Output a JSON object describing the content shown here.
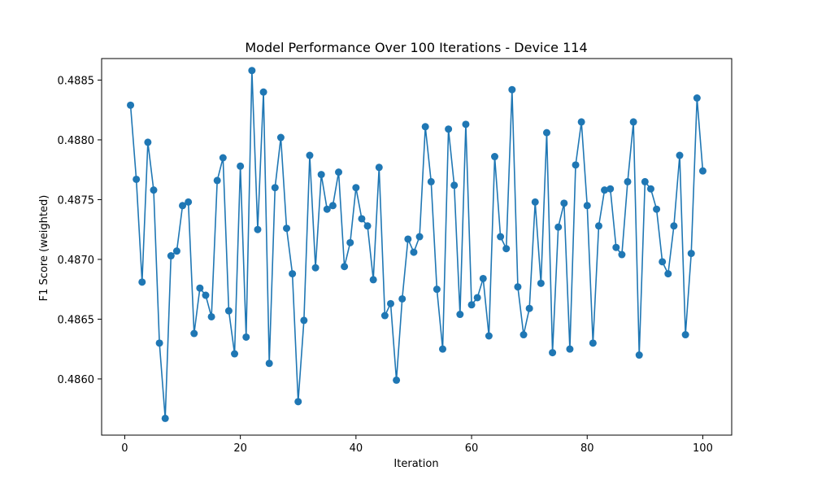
{
  "chart_data": {
    "type": "line",
    "title": "Model Performance Over 100 Iterations - Device 114",
    "xlabel": "Iteration",
    "ylabel": "F1 Score (weighted)",
    "xlim": [
      -4,
      105
    ],
    "ylim": [
      0.48553,
      0.48868
    ],
    "xticks": [
      0,
      20,
      40,
      60,
      80,
      100
    ],
    "yticks": [
      0.486,
      0.4865,
      0.487,
      0.4875,
      0.488,
      0.4885
    ],
    "xtick_labels": [
      "0",
      "20",
      "40",
      "60",
      "80",
      "100"
    ],
    "ytick_labels": [
      "0.4860",
      "0.4865",
      "0.4870",
      "0.4875",
      "0.4880",
      "0.4885"
    ],
    "grid": false,
    "color": "#1f77b4",
    "marker": "circle",
    "series": [
      {
        "x": [
          1,
          2,
          3,
          4,
          5,
          6,
          7,
          8,
          9,
          10,
          11,
          12,
          13,
          14,
          15,
          16,
          17,
          18,
          19,
          20,
          21,
          22,
          23,
          24,
          25,
          26,
          27,
          28,
          29,
          30,
          31,
          32,
          33,
          34,
          35,
          36,
          37,
          38,
          39,
          40,
          41,
          42,
          43,
          44,
          45,
          46,
          47,
          48,
          49,
          50,
          51,
          52,
          53,
          54,
          55,
          56,
          57,
          58,
          59,
          60,
          61,
          62,
          63,
          64,
          65,
          66,
          67,
          68,
          69,
          70,
          71,
          72,
          73,
          74,
          75,
          76,
          77,
          78,
          79,
          80,
          81,
          82,
          83,
          84,
          85,
          86,
          87,
          88,
          89,
          90,
          91,
          92,
          93,
          94,
          95,
          96,
          97,
          98,
          99,
          100
        ],
        "y": [
          0.48829,
          0.48767,
          0.48681,
          0.48798,
          0.48758,
          0.4863,
          0.48567,
          0.48703,
          0.48707,
          0.48745,
          0.48748,
          0.48638,
          0.48676,
          0.4867,
          0.48652,
          0.48766,
          0.48785,
          0.48657,
          0.48621,
          0.48778,
          0.48635,
          0.48858,
          0.48725,
          0.4884,
          0.48613,
          0.4876,
          0.48802,
          0.48726,
          0.48688,
          0.48581,
          0.48649,
          0.48787,
          0.48693,
          0.48771,
          0.48742,
          0.48745,
          0.48773,
          0.48694,
          0.48714,
          0.4876,
          0.48734,
          0.48728,
          0.48683,
          0.48777,
          0.48653,
          0.48663,
          0.48599,
          0.48667,
          0.48717,
          0.48706,
          0.48719,
          0.48811,
          0.48765,
          0.48675,
          0.48625,
          0.48809,
          0.48762,
          0.48654,
          0.48813,
          0.48662,
          0.48668,
          0.48684,
          0.48636,
          0.48786,
          0.48719,
          0.48709,
          0.48842,
          0.48677,
          0.48637,
          0.48659,
          0.48748,
          0.4868,
          0.48806,
          0.48622,
          0.48727,
          0.48747,
          0.48625,
          0.48779,
          0.48815,
          0.48745,
          0.4863,
          0.48728,
          0.48758,
          0.48759,
          0.4871,
          0.48704,
          0.48765,
          0.48815,
          0.4862,
          0.48765,
          0.48759,
          0.48742,
          0.48698,
          0.48688,
          0.48728,
          0.48787,
          0.48637,
          0.48705,
          0.48835,
          0.48774
        ]
      }
    ]
  }
}
